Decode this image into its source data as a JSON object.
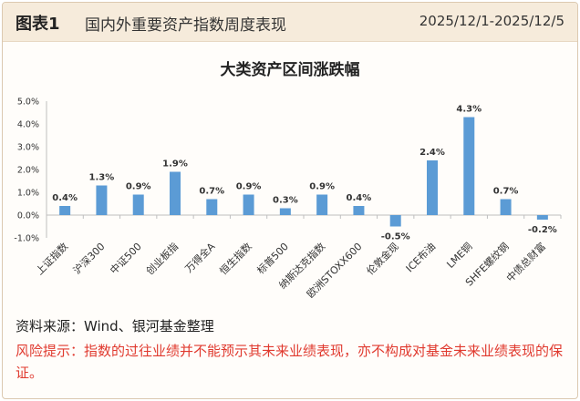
{
  "header": {
    "fig_label": "图表1",
    "fig_title": "国内外重要资产指数周度表现",
    "date_range": "2025/12/1-2025/12/5"
  },
  "chart_data": {
    "type": "bar",
    "title": "大类资产区间涨跌幅",
    "categories": [
      "上证指数",
      "沪深300",
      "中证500",
      "创业板指",
      "万得全A",
      "恒生指数",
      "标普500",
      "纳斯达克指数",
      "欧洲STOXX600",
      "伦敦金现",
      "ICE布油",
      "LME铜",
      "SHFE螺纹钢",
      "中债总财富"
    ],
    "values": [
      0.4,
      1.3,
      0.9,
      1.9,
      0.7,
      0.9,
      0.3,
      0.9,
      0.4,
      -0.5,
      2.4,
      4.3,
      0.7,
      -0.2
    ],
    "data_labels": [
      "0.4%",
      "1.3%",
      "0.9%",
      "1.9%",
      "0.7%",
      "0.9%",
      "0.3%",
      "0.9%",
      "0.4%",
      "-0.5%",
      "2.4%",
      "4.3%",
      "0.7%",
      "-0.2%"
    ],
    "yticks": [
      5,
      4,
      3,
      2,
      1,
      0,
      -1
    ],
    "ytick_labels": [
      "5.0%",
      "4.0%",
      "3.0%",
      "2.0%",
      "1.0%",
      "0.0%",
      "-1.0%"
    ],
    "ylim": [
      -1,
      5
    ],
    "grid": false,
    "legend": "none",
    "colors": {
      "bar": "#5b9bd5",
      "label_text": "#333333"
    }
  },
  "footer": {
    "source": "资料来源：Wind、银河基金整理",
    "risk": "风险提示：指数的过往业绩并不能预示其未来业绩表现，亦不构成对基金未来业绩表现的保证。"
  }
}
